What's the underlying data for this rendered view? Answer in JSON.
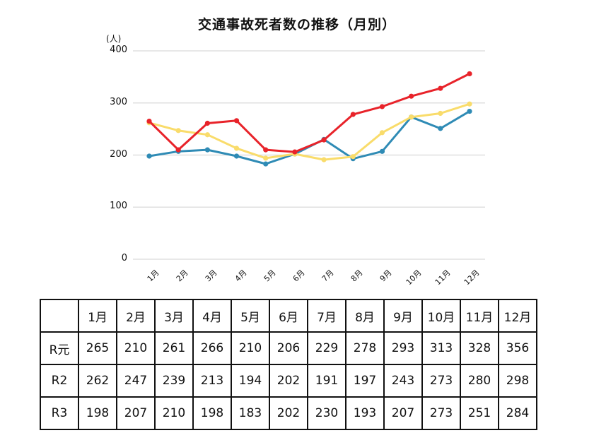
{
  "chart_title": "交通事故死者数の推移（月別）",
  "y_unit": "(人)",
  "y_ticks": [
    "400",
    "300",
    "200",
    "100",
    "0"
  ],
  "x_ticks": [
    "1月",
    "2月",
    "3月",
    "4月",
    "5月",
    "6月",
    "7月",
    "8月",
    "9月",
    "10月",
    "11月",
    "12月"
  ],
  "colors": {
    "R元": "#e8232a",
    "R2": "#f9dc6b",
    "R3": "#2f8bb5",
    "grid": "#d9d9d9"
  },
  "table": {
    "header": [
      "",
      "1月",
      "2月",
      "3月",
      "4月",
      "5月",
      "6月",
      "7月",
      "8月",
      "9月",
      "10月",
      "11月",
      "12月"
    ],
    "rows": [
      {
        "label": "R元",
        "values": [
          "265",
          "210",
          "261",
          "266",
          "210",
          "206",
          "229",
          "278",
          "293",
          "313",
          "328",
          "356"
        ]
      },
      {
        "label": "R2",
        "values": [
          "262",
          "247",
          "239",
          "213",
          "194",
          "202",
          "191",
          "197",
          "243",
          "273",
          "280",
          "298"
        ]
      },
      {
        "label": "R3",
        "values": [
          "198",
          "207",
          "210",
          "198",
          "183",
          "202",
          "230",
          "193",
          "207",
          "273",
          "251",
          "284"
        ]
      }
    ]
  },
  "chart_data": {
    "type": "line",
    "title": "交通事故死者数の推移（月別）",
    "xlabel": "",
    "ylabel": "(人)",
    "ylim": [
      0,
      400
    ],
    "yticks": [
      0,
      100,
      200,
      300,
      400
    ],
    "grid": true,
    "legend": "none (values shown in table below)",
    "categories": [
      "1月",
      "2月",
      "3月",
      "4月",
      "5月",
      "6月",
      "7月",
      "8月",
      "9月",
      "10月",
      "11月",
      "12月"
    ],
    "series": [
      {
        "name": "R元",
        "color": "#e8232a",
        "values": [
          265,
          210,
          261,
          266,
          210,
          206,
          229,
          278,
          293,
          313,
          328,
          356
        ]
      },
      {
        "name": "R2",
        "color": "#f9dc6b",
        "values": [
          262,
          247,
          239,
          213,
          194,
          202,
          191,
          197,
          243,
          273,
          280,
          298
        ]
      },
      {
        "name": "R3",
        "color": "#2f8bb5",
        "values": [
          198,
          207,
          210,
          198,
          183,
          202,
          230,
          193,
          207,
          273,
          251,
          284
        ]
      }
    ]
  }
}
